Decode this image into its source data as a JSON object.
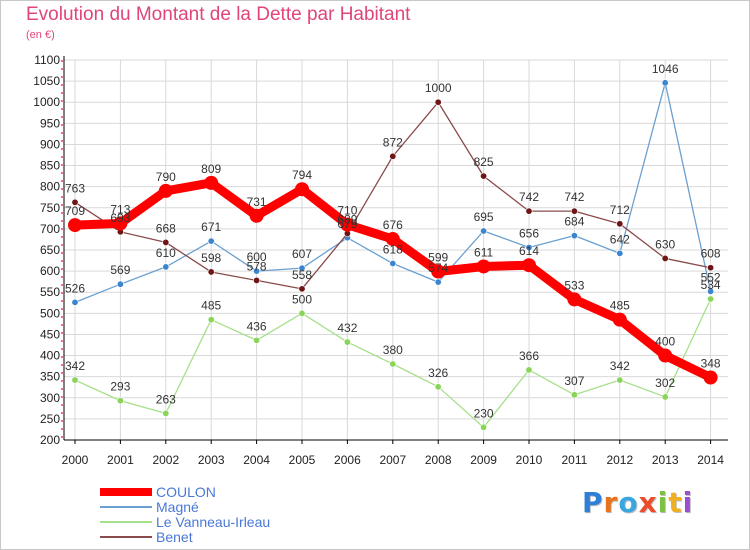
{
  "header": {
    "title": "Evolution du Montant de la Dette par Habitant",
    "subtitle": "(en €)"
  },
  "logo": {
    "text": "Proxiti",
    "letter_colors": [
      "#2f7fd6",
      "#e8731c",
      "#3aa6e0",
      "#e94d2c",
      "#7cc242",
      "#f0b020",
      "#9a4fd0"
    ]
  },
  "chart_data": {
    "type": "line",
    "x": [
      "2000",
      "2001",
      "2002",
      "2003",
      "2004",
      "2005",
      "2006",
      "2007",
      "2008",
      "2009",
      "2010",
      "2011",
      "2012",
      "2013",
      "2014"
    ],
    "ylim": [
      200,
      1100
    ],
    "yticks": [
      200,
      250,
      300,
      350,
      400,
      450,
      500,
      550,
      600,
      650,
      700,
      750,
      800,
      850,
      900,
      950,
      1000,
      1050,
      1100
    ],
    "grid": true,
    "legend_position": "bottom-left",
    "series": [
      {
        "name": "COULON",
        "color": "#ff0000",
        "highlight": true,
        "values": [
          709,
          713,
          790,
          809,
          731,
          794,
          710,
          676,
          599,
          611,
          614,
          533,
          485,
          400,
          348
        ]
      },
      {
        "name": "Magné",
        "color": "#6aa0d2",
        "point_color": "#3b86cf",
        "values": [
          526,
          569,
          610,
          671,
          600,
          607,
          679,
          618,
          574,
          695,
          656,
          684,
          642,
          1046,
          552
        ]
      },
      {
        "name": "Le Vanneau-Irleau",
        "color": "#a6e08a",
        "point_color": "#8ad45a",
        "values": [
          342,
          293,
          263,
          485,
          436,
          500,
          432,
          380,
          326,
          230,
          366,
          307,
          342,
          302,
          534
        ]
      },
      {
        "name": "Benet",
        "color": "#8a4a4a",
        "point_color": "#6e1616",
        "values": [
          763,
          693,
          668,
          598,
          578,
          558,
          689,
          872,
          1000,
          825,
          742,
          742,
          712,
          630,
          608
        ]
      }
    ]
  }
}
